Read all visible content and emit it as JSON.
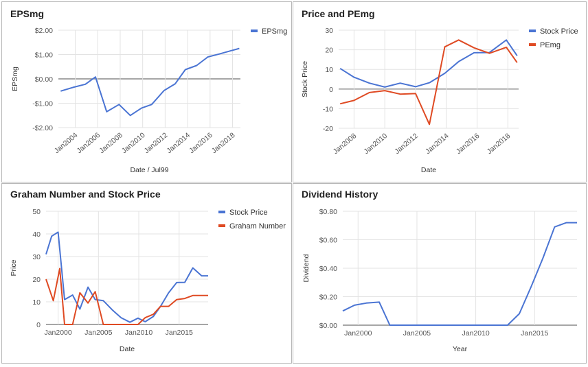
{
  "colors": {
    "blue": "#4a74d3",
    "red": "#df4a23"
  },
  "chart_data": [
    {
      "id": "eps",
      "type": "line",
      "title": "EPSmg",
      "xlabel": "Date / Jul99",
      "ylabel": "EPSmg",
      "ylim": [
        -2,
        2
      ],
      "xlim": [
        2002.5,
        2018.7
      ],
      "yticks": [
        -2,
        -1,
        0,
        1,
        2
      ],
      "ytick_labels": [
        "-$2.00",
        "-$1.00",
        "$0.00",
        "$1.00",
        "$2.00"
      ],
      "xticks": [
        2004,
        2006,
        2008,
        2010,
        2012,
        2014,
        2016,
        2018
      ],
      "xtick_labels": [
        "Jan2004",
        "Jan2006",
        "Jan2008",
        "Jan2010",
        "Jan2012",
        "Jan2014",
        "Jan2016",
        "Jan2018"
      ],
      "x_rotated": true,
      "series": [
        {
          "name": "EPSmg",
          "color": "#4a74d3",
          "x": [
            2002.7,
            2003.8,
            2004.9,
            2005.8,
            2006.8,
            2007.9,
            2008.9,
            2009.9,
            2010.8,
            2011.9,
            2012.9,
            2013.8,
            2014.8,
            2015.8,
            2016.8,
            2017.8,
            2018.6
          ],
          "y": [
            -0.5,
            -0.35,
            -0.22,
            0.08,
            -1.35,
            -1.05,
            -1.5,
            -1.2,
            -1.05,
            -0.48,
            -0.2,
            0.38,
            0.55,
            0.9,
            1.02,
            1.15,
            1.25
          ]
        }
      ]
    },
    {
      "id": "price_pe",
      "type": "line",
      "title": "Price and PEmg",
      "xlabel": "Date",
      "ylabel": "Stock Price",
      "ylim": [
        -20,
        30
      ],
      "xlim": [
        2007.0,
        2018.7
      ],
      "yticks": [
        -20,
        -10,
        0,
        10,
        20,
        30
      ],
      "ytick_labels": [
        "-20",
        "-10",
        "0",
        "10",
        "20",
        "30"
      ],
      "xticks": [
        2008,
        2010,
        2012,
        2014,
        2016,
        2018
      ],
      "xtick_labels": [
        "Jan2008",
        "Jan2010",
        "Jan2012",
        "Jan2014",
        "Jan2016",
        "Jan2018"
      ],
      "x_rotated": true,
      "series": [
        {
          "name": "Stock Price",
          "color": "#4a74d3",
          "x": [
            2007.1,
            2008.0,
            2009.0,
            2010.0,
            2011.0,
            2012.0,
            2012.9,
            2013.9,
            2014.8,
            2015.8,
            2016.8,
            2017.9,
            2018.6
          ],
          "y": [
            10.5,
            6.0,
            3.0,
            1.0,
            3.0,
            1.2,
            3.2,
            8.0,
            14.0,
            18.5,
            18.6,
            25.0,
            17.0
          ]
        },
        {
          "name": "PEmg",
          "color": "#df4a23",
          "x": [
            2007.1,
            2008.0,
            2009.0,
            2010.0,
            2011.0,
            2012.0,
            2012.9,
            2013.9,
            2014.8,
            2015.8,
            2016.8,
            2017.9,
            2018.6
          ],
          "y": [
            -7.5,
            -5.8,
            -1.8,
            -0.8,
            -2.6,
            -2.3,
            -18.0,
            21.5,
            25.0,
            21.0,
            18.2,
            21.3,
            13.5
          ]
        }
      ]
    },
    {
      "id": "graham",
      "type": "line",
      "title": "Graham Number and Stock Price",
      "xlabel": "Date",
      "ylabel": "Price",
      "ylim": [
        0,
        50
      ],
      "xlim": [
        1998.5,
        2018.6
      ],
      "yticks": [
        0,
        10,
        20,
        30,
        40,
        50
      ],
      "ytick_labels": [
        "0",
        "10",
        "20",
        "30",
        "40",
        "50"
      ],
      "xticks": [
        2000,
        2005,
        2010,
        2015
      ],
      "xtick_labels": [
        "Jan2000",
        "Jan2005",
        "Jan2010",
        "Jan2015"
      ],
      "x_rotated": false,
      "series": [
        {
          "name": "Stock Price",
          "color": "#4a74d3",
          "x": [
            1998.5,
            1999.2,
            2000.0,
            2000.8,
            2001.8,
            2002.7,
            2003.7,
            2004.6,
            2005.6,
            2006.7,
            2007.8,
            2008.9,
            2009.9,
            2010.8,
            2011.8,
            2012.7,
            2013.7,
            2014.7,
            2015.7,
            2016.7,
            2017.8,
            2018.6
          ],
          "y": [
            31.0,
            39.0,
            40.8,
            11.0,
            13.0,
            6.8,
            16.5,
            11.0,
            10.5,
            6.5,
            3.0,
            1.0,
            2.8,
            1.2,
            3.5,
            8.0,
            14.0,
            18.5,
            18.6,
            25.0,
            21.5,
            21.5
          ]
        },
        {
          "name": "Graham Number",
          "color": "#df4a23",
          "x": [
            1998.5,
            1999.4,
            2000.2,
            2000.8,
            2001.8,
            2002.7,
            2003.7,
            2004.6,
            2005.6,
            2006.7,
            2007.8,
            2008.9,
            2009.9,
            2010.8,
            2011.8,
            2012.7,
            2013.7,
            2014.7,
            2015.7,
            2016.7,
            2017.8,
            2018.6
          ],
          "y": [
            20.0,
            10.5,
            24.7,
            0,
            0,
            14.0,
            9.5,
            14.5,
            0,
            0,
            0,
            0,
            0,
            3.0,
            4.5,
            8.0,
            8.0,
            11.0,
            11.5,
            12.8,
            12.8,
            12.8
          ]
        }
      ]
    },
    {
      "id": "dividend",
      "type": "line",
      "title": "Dividend History",
      "xlabel": "Year",
      "ylabel": "Dividend",
      "ylim": [
        0,
        0.8
      ],
      "xlim": [
        1998.7,
        2018.6
      ],
      "yticks": [
        0,
        0.2,
        0.4,
        0.6,
        0.8
      ],
      "ytick_labels": [
        "$0.00",
        "$0.20",
        "$0.40",
        "$0.60",
        "$0.80"
      ],
      "xticks": [
        2000,
        2005,
        2010,
        2015
      ],
      "xtick_labels": [
        "Jan2000",
        "Jan2005",
        "Jan2010",
        "Jan2015"
      ],
      "x_rotated": false,
      "series": [
        {
          "name": "Dividend",
          "color": "#4a74d3",
          "x": [
            1998.7,
            1999.7,
            2000.7,
            2001.8,
            2002.7,
            2003.7,
            2004.7,
            2005.7,
            2006.7,
            2007.7,
            2008.7,
            2009.7,
            2010.7,
            2011.7,
            2012.7,
            2013.7,
            2014.7,
            2015.7,
            2016.7,
            2017.7,
            2018.6
          ],
          "y": [
            0.1,
            0.14,
            0.155,
            0.162,
            0,
            0,
            0,
            0,
            0,
            0,
            0,
            0,
            0,
            0,
            0,
            0.08,
            0.27,
            0.47,
            0.69,
            0.72,
            0.72
          ]
        }
      ]
    }
  ]
}
